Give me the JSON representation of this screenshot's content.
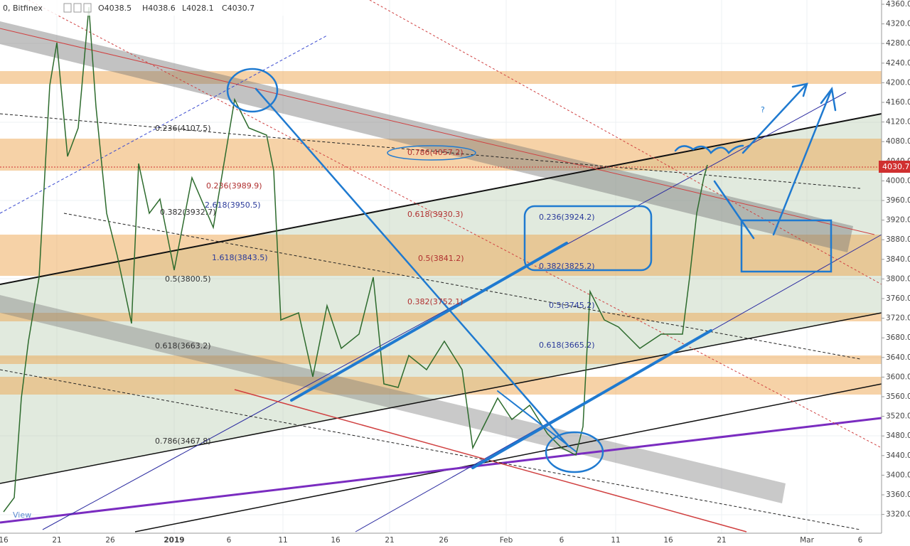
{
  "header": {
    "symbol": "0, Bitfinex",
    "open": "O4038.5",
    "high": "H4038.6",
    "low": "L4028.1",
    "close": "C4030.7"
  },
  "current_price": "4030.7",
  "price_axis": [
    "4360.0",
    "4320.0",
    "4280.0",
    "4240.0",
    "4200.0",
    "4160.0",
    "4120.0",
    "4080.0",
    "4040.0",
    "4000.0",
    "3960.0",
    "3920.0",
    "3880.0",
    "3840.0",
    "3800.0",
    "3760.0",
    "3720.0",
    "3680.0",
    "3640.0",
    "3600.0",
    "3560.0",
    "3520.0",
    "3480.0",
    "3440.0",
    "3400.0",
    "3360.0",
    "3320.0"
  ],
  "date_axis": [
    "16",
    "21",
    "26",
    "2019",
    "6",
    "11",
    "16",
    "21",
    "26",
    "Feb",
    "6",
    "11",
    "16",
    "21",
    "Mar",
    "6"
  ],
  "fib_labels": [
    "0.236(4107.5)",
    "0.786(4057.2)",
    "0.236(3989.9)",
    "2.618(3950.5)",
    "0.382(3932.7)",
    "0.618(3930.3)",
    "0.236(3924.2)",
    "1.618(3843.5)",
    "0.5(3841.2)",
    "0.382(3825.2)",
    "0.5(3800.5)",
    "0.382(3752.1)",
    "0.5(3745.2)",
    "0.618(3665.2)",
    "0.618(3663.2)",
    "0.786(3467.8)"
  ],
  "annotations": {
    "question": "?",
    "watermark": "View"
  }
}
